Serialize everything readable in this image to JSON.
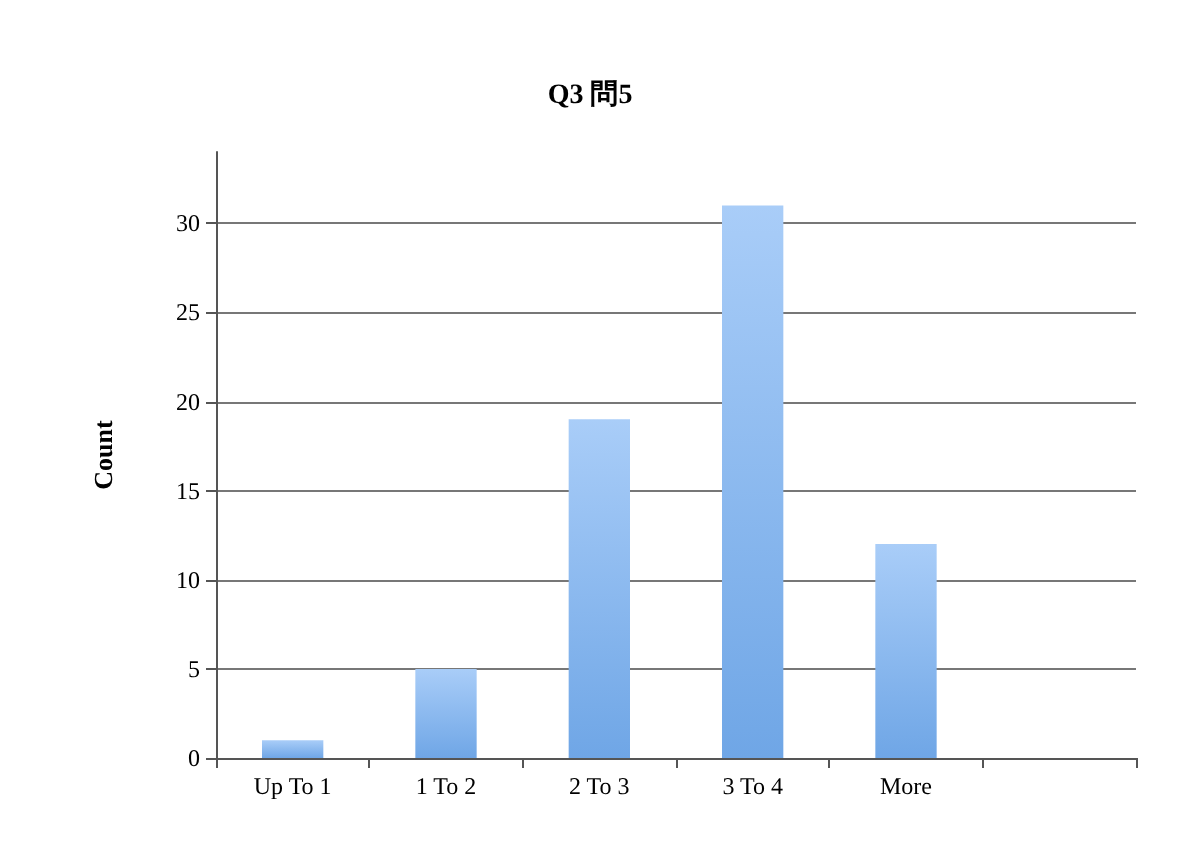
{
  "chart_data": {
    "type": "bar",
    "title": "Q3 問5",
    "ylabel": "Count",
    "categories": [
      "Up To 1",
      "1 To 2",
      "2 To 3",
      "3 To 4",
      "More",
      null
    ],
    "values": [
      1,
      5,
      19,
      31,
      12,
      null
    ],
    "color": "#6fa6e6",
    "ylim": [
      0,
      34
    ],
    "yticks": [
      0,
      5,
      10,
      15,
      20,
      25,
      30
    ],
    "grid": "y"
  }
}
